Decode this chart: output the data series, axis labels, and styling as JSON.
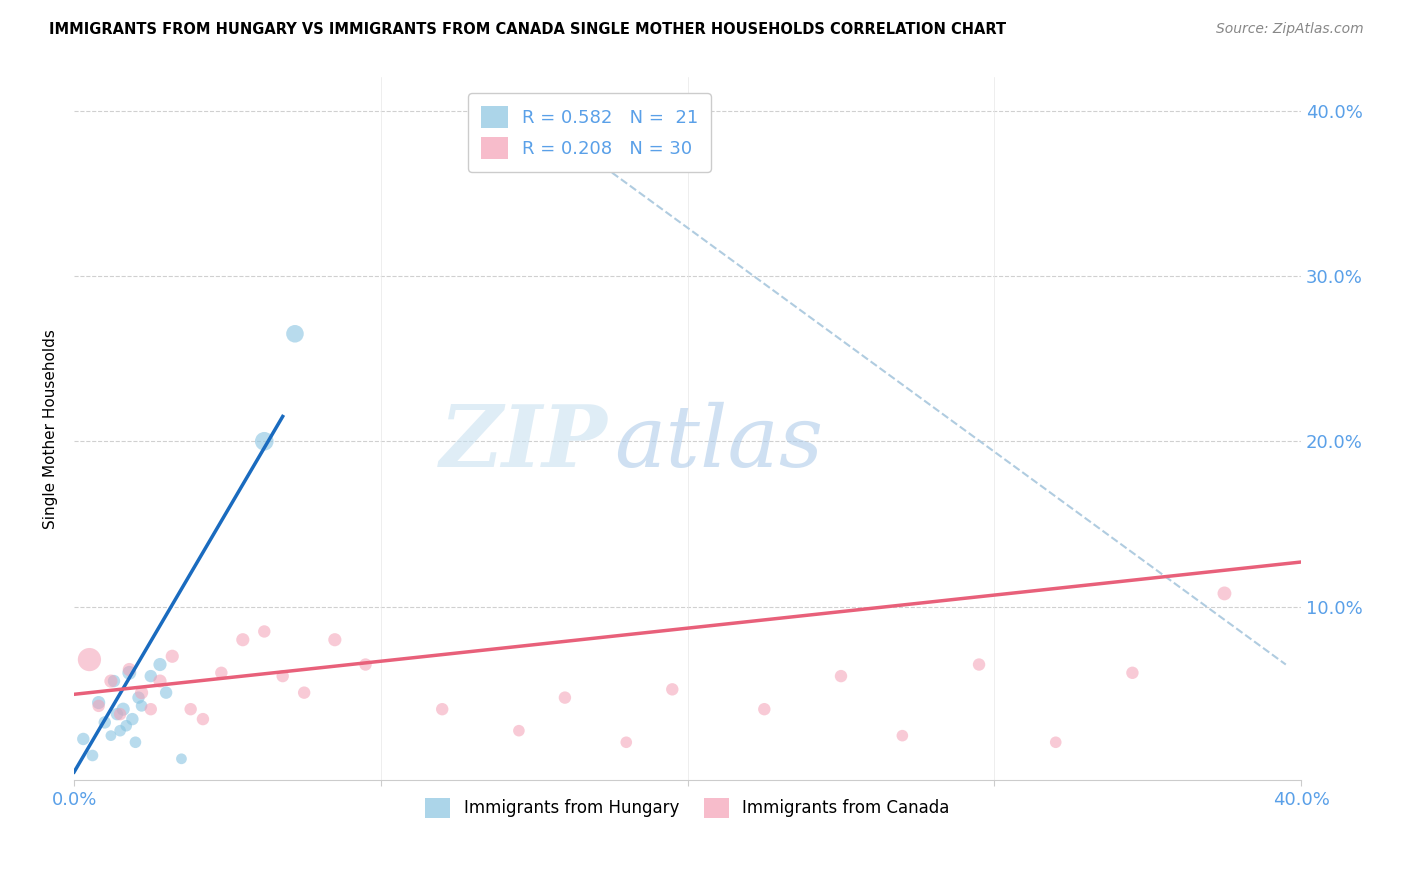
{
  "title": "IMMIGRANTS FROM HUNGARY VS IMMIGRANTS FROM CANADA SINGLE MOTHER HOUSEHOLDS CORRELATION CHART",
  "source": "Source: ZipAtlas.com",
  "ylabel": "Single Mother Households",
  "xlim": [
    0.0,
    0.4
  ],
  "ylim": [
    -0.005,
    0.42
  ],
  "hungary_color": "#89c4e1",
  "canada_color": "#f4a0b5",
  "hungary_line_color": "#1a6bbf",
  "canada_line_color": "#e8607a",
  "dashed_line_color": "#b0cce0",
  "tick_color": "#5aa0e8",
  "legend_hungary_label": "R = 0.582   N =  21",
  "legend_canada_label": "R = 0.208   N = 30",
  "watermark_zip": "ZIP",
  "watermark_atlas": "atlas",
  "hungary_scatter_x": [
    0.003,
    0.006,
    0.008,
    0.01,
    0.012,
    0.013,
    0.014,
    0.015,
    0.016,
    0.017,
    0.018,
    0.019,
    0.02,
    0.021,
    0.022,
    0.025,
    0.028,
    0.03,
    0.035,
    0.062,
    0.072
  ],
  "hungary_scatter_y": [
    0.02,
    0.01,
    0.042,
    0.03,
    0.022,
    0.055,
    0.035,
    0.025,
    0.038,
    0.028,
    0.06,
    0.032,
    0.018,
    0.045,
    0.04,
    0.058,
    0.065,
    0.048,
    0.008,
    0.2,
    0.265
  ],
  "hungary_scatter_size": [
    80,
    70,
    90,
    80,
    60,
    80,
    80,
    70,
    90,
    70,
    100,
    80,
    70,
    80,
    70,
    80,
    90,
    80,
    60,
    180,
    160
  ],
  "canada_scatter_x": [
    0.005,
    0.008,
    0.012,
    0.015,
    0.018,
    0.022,
    0.025,
    0.028,
    0.032,
    0.038,
    0.042,
    0.048,
    0.055,
    0.062,
    0.068,
    0.075,
    0.085,
    0.095,
    0.12,
    0.145,
    0.16,
    0.18,
    0.195,
    0.225,
    0.25,
    0.27,
    0.295,
    0.32,
    0.345,
    0.375
  ],
  "canada_scatter_y": [
    0.068,
    0.04,
    0.055,
    0.035,
    0.062,
    0.048,
    0.038,
    0.055,
    0.07,
    0.038,
    0.032,
    0.06,
    0.08,
    0.085,
    0.058,
    0.048,
    0.08,
    0.065,
    0.038,
    0.025,
    0.045,
    0.018,
    0.05,
    0.038,
    0.058,
    0.022,
    0.065,
    0.018,
    0.06,
    0.108
  ],
  "canada_scatter_size": [
    280,
    80,
    90,
    80,
    90,
    90,
    80,
    90,
    90,
    80,
    80,
    80,
    90,
    80,
    80,
    80,
    90,
    80,
    80,
    70,
    80,
    70,
    80,
    80,
    80,
    70,
    80,
    70,
    80,
    100
  ],
  "hungary_trendline_x": [
    0.0,
    0.068
  ],
  "hungary_trendline_y": [
    0.0,
    0.215
  ],
  "canada_trendline_x": [
    0.0,
    0.4
  ],
  "canada_trendline_y": [
    0.047,
    0.127
  ],
  "dashed_trendline_x": [
    0.155,
    0.395
  ],
  "dashed_trendline_y": [
    0.39,
    0.065
  ]
}
